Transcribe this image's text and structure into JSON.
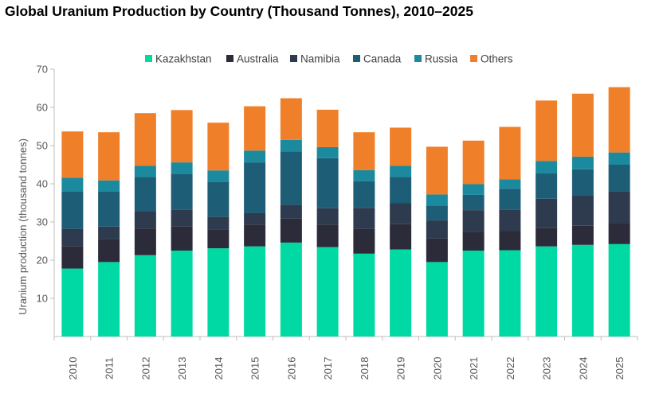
{
  "title": "Global Uranium Production by Country (Thousand Tonnes), 2010–2025",
  "chart_data": {
    "type": "bar",
    "stacked": true,
    "title": "Global Uranium Production by Country (Thousand Tonnes), 2010–2025",
    "xlabel": "",
    "ylabel": "Uranium production (thousand tonnes)",
    "ylim": [
      0,
      70
    ],
    "yticks": [
      10,
      20,
      30,
      40,
      50,
      60,
      70
    ],
    "grid": false,
    "legend_position": "top",
    "categories": [
      "2010",
      "2011",
      "2012",
      "2013",
      "2014",
      "2015",
      "2016",
      "2017",
      "2018",
      "2019",
      "2020",
      "2021",
      "2022",
      "2023",
      "2024",
      "2025"
    ],
    "series": [
      {
        "name": "Kazakhstan",
        "color": "#00d9a3",
        "values": [
          17.8,
          19.5,
          21.3,
          22.5,
          23.1,
          23.6,
          24.6,
          23.4,
          21.7,
          22.8,
          19.5,
          22.5,
          22.6,
          23.6,
          24.0,
          24.2
        ]
      },
      {
        "name": "Australia",
        "color": "#2b2b3a",
        "values": [
          5.9,
          6.0,
          7.0,
          6.4,
          5.0,
          5.7,
          6.3,
          5.9,
          6.5,
          6.6,
          6.2,
          4.8,
          5.0,
          4.8,
          5.0,
          5.5
        ]
      },
      {
        "name": "Namibia",
        "color": "#2e3a4e",
        "values": [
          4.5,
          3.3,
          4.5,
          4.3,
          3.3,
          3.0,
          3.6,
          4.3,
          5.5,
          5.5,
          4.7,
          5.8,
          5.6,
          7.7,
          8.0,
          8.3
        ]
      },
      {
        "name": "Canada",
        "color": "#1d5d76",
        "values": [
          9.8,
          9.2,
          9.0,
          9.3,
          9.1,
          13.3,
          14.0,
          13.1,
          7.0,
          6.9,
          3.9,
          4.0,
          5.5,
          6.6,
          6.8,
          7.0
        ]
      },
      {
        "name": "Russia",
        "color": "#1b8a9e",
        "values": [
          3.6,
          2.9,
          2.9,
          3.1,
          3.0,
          3.1,
          3.0,
          2.9,
          2.9,
          2.9,
          2.9,
          2.8,
          2.5,
          3.3,
          3.3,
          3.2
        ]
      },
      {
        "name": "Others",
        "color": "#f07f2a",
        "values": [
          12.1,
          12.6,
          13.8,
          13.7,
          12.5,
          11.6,
          10.9,
          9.8,
          9.9,
          10.0,
          12.5,
          11.4,
          13.7,
          15.8,
          16.5,
          17.1
        ]
      }
    ]
  }
}
